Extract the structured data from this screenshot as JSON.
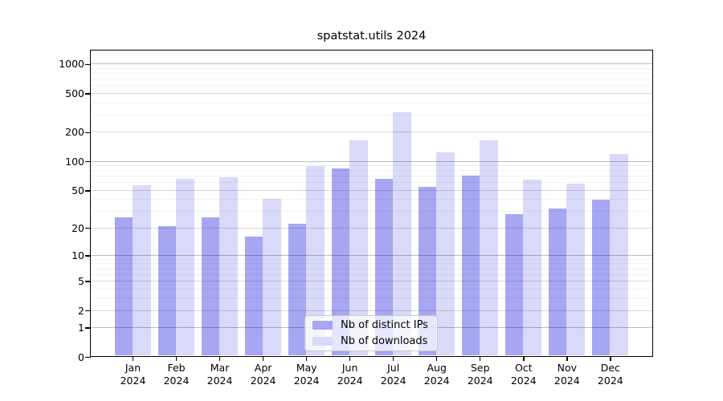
{
  "title": "spatstat.utils 2024",
  "chart_data": {
    "type": "bar",
    "title": "spatstat.utils 2024",
    "categories": [
      "Jan 2024",
      "Feb 2024",
      "Mar 2024",
      "Apr 2024",
      "May 2024",
      "Jun 2024",
      "Jul 2024",
      "Aug 2024",
      "Sep 2024",
      "Oct 2024",
      "Nov 2024",
      "Dec 2024"
    ],
    "month_labels": [
      "Jan",
      "Feb",
      "Mar",
      "Apr",
      "May",
      "Jun",
      "Jul",
      "Aug",
      "Sep",
      "Oct",
      "Nov",
      "Dec"
    ],
    "year_label": "2024",
    "series": [
      {
        "name": "Nb of distinct IPs",
        "color": "#a6a6f2",
        "values": [
          26,
          21,
          26,
          16,
          22,
          85,
          66,
          54,
          71,
          28,
          32,
          40
        ]
      },
      {
        "name": "Nb of downloads",
        "color": "#d9d9f9",
        "values": [
          57,
          66,
          68,
          41,
          89,
          164,
          318,
          125,
          166,
          65,
          59,
          119
        ]
      }
    ],
    "xlabel": "",
    "ylabel": "",
    "yscale": "log1p",
    "ylim": [
      0,
      1400
    ],
    "yticks": [
      0,
      1,
      2,
      5,
      10,
      20,
      50,
      100,
      200,
      500,
      1000
    ],
    "grid": {
      "major": [
        1,
        10,
        100,
        1000
      ],
      "medium": [
        2,
        5,
        20,
        50,
        200,
        500
      ],
      "minor": [
        3,
        4,
        6,
        7,
        8,
        9,
        30,
        40,
        60,
        70,
        80,
        90,
        300,
        400,
        600,
        700,
        800,
        900
      ]
    },
    "grid_on": true,
    "legend_position": "lower-center-inside"
  }
}
